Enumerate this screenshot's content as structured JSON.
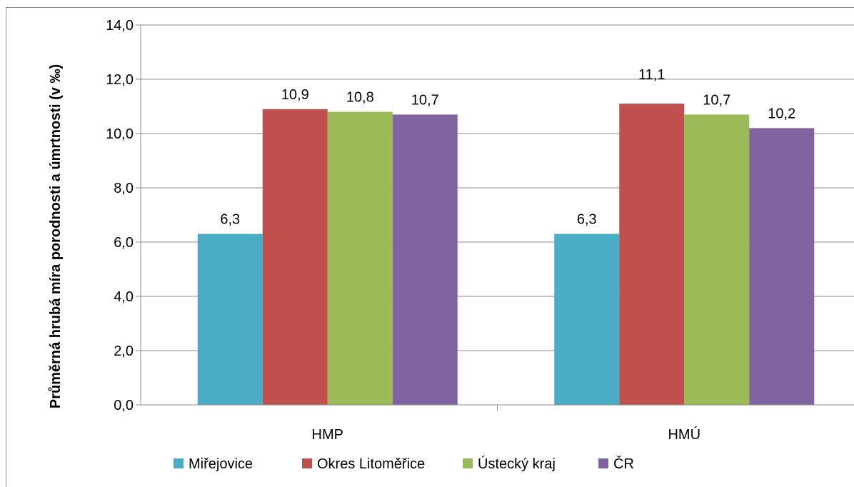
{
  "chart_data": {
    "type": "bar",
    "title": "",
    "xlabel": "",
    "ylabel": "Průměrná hrubá míra porodnosti a úmrtnosti (v ‰)",
    "categories": [
      "HMP",
      "HMÚ"
    ],
    "series": [
      {
        "name": "Miřejovice",
        "values": [
          6.3,
          6.3
        ],
        "labels": [
          "6,3",
          "6,3"
        ],
        "color": "#4bacc6"
      },
      {
        "name": "Okres Litoměřice",
        "values": [
          10.9,
          11.1
        ],
        "labels": [
          "10,9",
          "11,1"
        ],
        "color": "#c0504d"
      },
      {
        "name": "Ústecký kraj",
        "values": [
          10.8,
          10.7
        ],
        "labels": [
          "10,8",
          "10,7"
        ],
        "color": "#9bbb59"
      },
      {
        "name": "ČR",
        "values": [
          10.7,
          10.2
        ],
        "labels": [
          "10,7",
          "10,2"
        ],
        "color": "#8064a2"
      }
    ],
    "ylim": [
      0,
      14
    ],
    "yticks": [
      0,
      2,
      4,
      6,
      8,
      10,
      12,
      14
    ],
    "ytick_labels": [
      "0,0",
      "2,0",
      "4,0",
      "6,0",
      "8,0",
      "10,0",
      "12,0",
      "14,0"
    ],
    "grid": true,
    "legend": "bottom",
    "colors": {
      "grid": "#8c8c8c",
      "axis": "#8c8c8c"
    }
  }
}
